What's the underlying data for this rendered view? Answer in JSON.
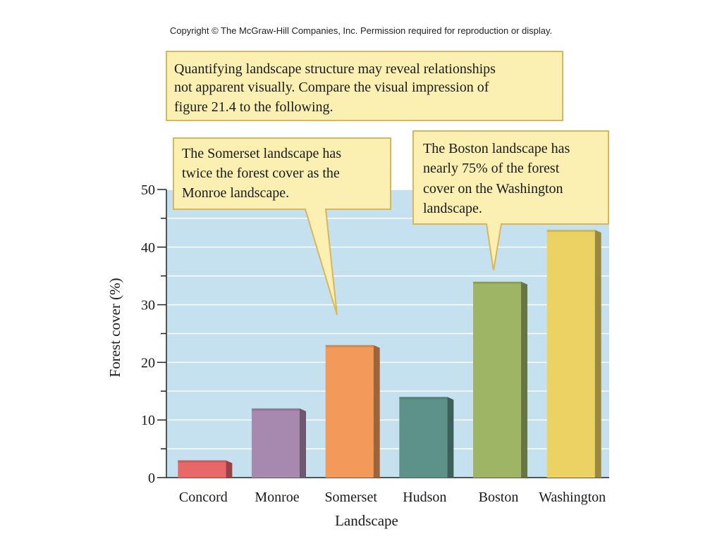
{
  "copyright": "Copyright © The McGraw-Hill Companies, Inc. Permission required for reproduction or display.",
  "callouts": {
    "top": [
      "Quantifying landscape structure may reveal relationships",
      "not apparent visually. Compare the visual impression of",
      "figure 21.4 to the following."
    ],
    "somerset": [
      "The Somerset landscape has",
      "twice the forest cover as the",
      "Monroe landscape."
    ],
    "boston": [
      "The Boston landscape has",
      "nearly 75% of the forest",
      "cover on the Washington",
      "landscape."
    ]
  },
  "colors": {
    "plot_bg": "#c5e1ef",
    "callout_bg": "#fbefb2",
    "callout_border": "#d8b65a"
  },
  "chart_data": {
    "type": "bar",
    "categories": [
      "Concord",
      "Monroe",
      "Somerset",
      "Hudson",
      "Boston",
      "Washington"
    ],
    "values": [
      3,
      12,
      23,
      14,
      34,
      43
    ],
    "bar_colors": [
      "#e8686a",
      "#a788ae",
      "#f39a5b",
      "#5d928a",
      "#9fb566",
      "#ecd163"
    ],
    "xlabel": "Landscape",
    "ylabel": "Forest cover (%)",
    "ylim": [
      0,
      50
    ],
    "yticks": [
      0,
      10,
      20,
      30,
      40,
      50
    ],
    "grid": true
  }
}
